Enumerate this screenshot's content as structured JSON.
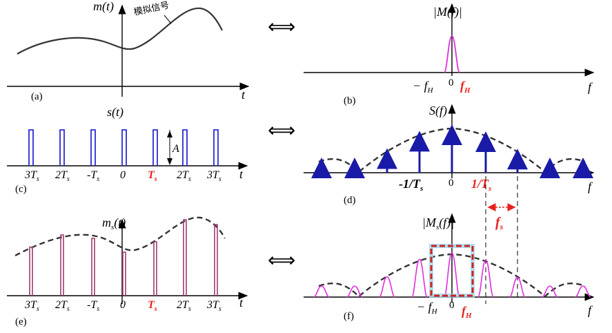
{
  "panel_a": {
    "ylabel": "m(t)",
    "annotation": "模拟信号",
    "xlabel": "t",
    "caption": "(a)"
  },
  "panel_b": {
    "ylabel": "|M(f)|",
    "xlabel": "f",
    "tick_neg": "− f",
    "tick_neg_sub": "H",
    "tick_zero": "0",
    "tick_pos": "f",
    "tick_pos_sub": "H",
    "caption": "(b)"
  },
  "panel_c": {
    "ylabel": "s(t)",
    "xlabel": "t",
    "amplitude": "A",
    "ticks": [
      "3T",
      "2T",
      "-T",
      "0",
      "T",
      "2T",
      "3T"
    ],
    "tick_sub": "s",
    "highlight_index": 4,
    "caption": "(c)"
  },
  "panel_d": {
    "ylabel": "S(f)",
    "xlabel": "f",
    "tick_neg": "-1/T",
    "tick_zero": "0",
    "tick_pos": "1/T",
    "tick_sub": "s",
    "caption": "(d)",
    "fs_label": "f",
    "fs_sub": "s"
  },
  "panel_e": {
    "ylabel": "m",
    "ylabel_sub": "s",
    "ylabel_arg": "(t)",
    "xlabel": "t",
    "ticks": [
      "3T",
      "2T",
      "-T",
      "0",
      "T",
      "2T",
      "3T"
    ],
    "tick_sub": "s",
    "highlight_index": 4,
    "caption": "(e)"
  },
  "panel_f": {
    "ylabel": "|M",
    "ylabel_sub": "s",
    "ylabel_arg": "(f)|",
    "xlabel": "f",
    "tick_neg": "− f",
    "tick_neg_sub": "H",
    "tick_zero": "0",
    "tick_pos": "f",
    "tick_pos_sub": "H",
    "caption": "(f)"
  },
  "equiv_symbol": "⟺",
  "colors": {
    "pulse": "#2b2bd6",
    "sample": "#9e3a6e",
    "spectrum": "#e030e0",
    "arrow": "#1a1aa8",
    "highlight": "#e8231f"
  }
}
